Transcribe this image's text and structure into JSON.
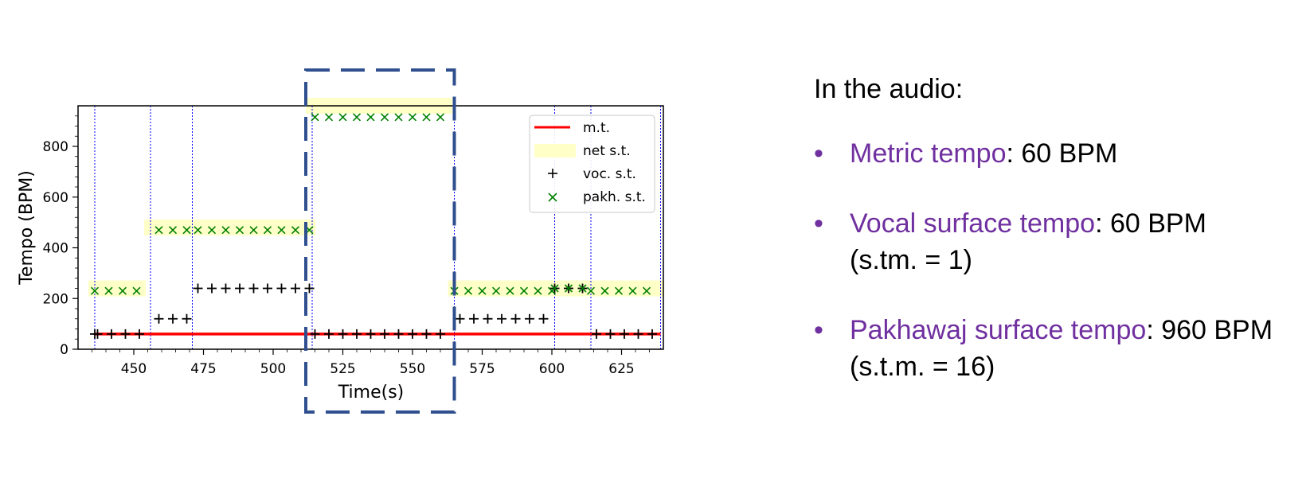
{
  "chart_data": {
    "type": "scatter",
    "xlabel": "Time(s)",
    "ylabel": "Tempo (BPM)",
    "xlim": [
      430,
      640
    ],
    "ylim": [
      0,
      960
    ],
    "xticks": [
      450,
      475,
      500,
      525,
      550,
      575,
      600,
      625
    ],
    "yticks": [
      0,
      200,
      400,
      600,
      800
    ],
    "grid": false,
    "legend_position": "top-right",
    "section_boundaries": [
      436,
      456,
      471,
      514,
      565,
      601,
      614,
      639
    ],
    "highlight_range": [
      512,
      565
    ],
    "colors": {
      "metric": "#ff0000",
      "net": "#ffffc8",
      "vocal": "#000000",
      "pakhawaj": "#008000",
      "boundary": "#0000ff",
      "highlight": "#2f4f8f"
    },
    "series": [
      {
        "name": "m.t.",
        "kind": "line",
        "points": [
          [
            436,
            60
          ],
          [
            639,
            60
          ]
        ]
      },
      {
        "name": "net s.t.",
        "kind": "band",
        "segments": [
          {
            "x": [
              436,
              452
            ],
            "y": 240
          },
          {
            "x": [
              456,
              469
            ],
            "y": 480
          },
          {
            "x": [
              471,
              513
            ],
            "y": 480
          },
          {
            "x": [
              514,
              562
            ],
            "y": 960
          },
          {
            "x": [
              565,
              600
            ],
            "y": 240
          },
          {
            "x": [
              601,
              613
            ],
            "y": 240
          },
          {
            "x": [
              614,
              638
            ],
            "y": 240
          }
        ]
      },
      {
        "name": "voc. s.t.",
        "kind": "marker",
        "marker": "plus",
        "segments": [
          {
            "x": [
              436,
              437,
              442,
              447,
              452
            ],
            "y": 60
          },
          {
            "x": [
              459,
              464,
              469
            ],
            "y": 120
          },
          {
            "x": [
              473,
              478,
              483,
              488,
              493,
              498,
              503,
              508,
              513
            ],
            "y": 240
          },
          {
            "x": [
              515,
              520,
              525,
              530,
              535,
              540,
              545,
              550,
              555,
              560
            ],
            "y": 60
          },
          {
            "x": [
              567,
              572,
              577,
              582,
              587,
              592,
              597
            ],
            "y": 120
          },
          {
            "x": [
              601,
              606,
              611
            ],
            "y": 240
          },
          {
            "x": [
              616,
              621,
              626,
              631,
              636
            ],
            "y": 60
          }
        ]
      },
      {
        "name": "pakh. s.t.",
        "kind": "marker",
        "marker": "x",
        "segments": [
          {
            "x": [
              436,
              441,
              446,
              451
            ],
            "y": 230
          },
          {
            "x": [
              459,
              464,
              469
            ],
            "y": 470
          },
          {
            "x": [
              473,
              478,
              483,
              488,
              493,
              498,
              503,
              508,
              513
            ],
            "y": 470
          },
          {
            "x": [
              515,
              520,
              525,
              530,
              535,
              540,
              545,
              550,
              555,
              560
            ],
            "y": 915
          },
          {
            "x": [
              565,
              570,
              575,
              580,
              585,
              590,
              595,
              600
            ],
            "y": 230
          },
          {
            "x": [
              601,
              606,
              611
            ],
            "y": 240
          },
          {
            "x": [
              614,
              619,
              624,
              629,
              634
            ],
            "y": 230
          }
        ]
      }
    ]
  },
  "panel": {
    "intro": "In the audio:",
    "bullet_glyph": "•",
    "items": [
      {
        "term": "Metric tempo",
        "value": ": 60 BPM",
        "note": ""
      },
      {
        "term": "Vocal surface tempo",
        "value": ": 60 BPM",
        "note": "(s.tm. = 1)"
      },
      {
        "term": "Pakhawaj surface tempo",
        "value": ": 960 BPM",
        "note": "(s.t.m. = 16)"
      }
    ]
  }
}
